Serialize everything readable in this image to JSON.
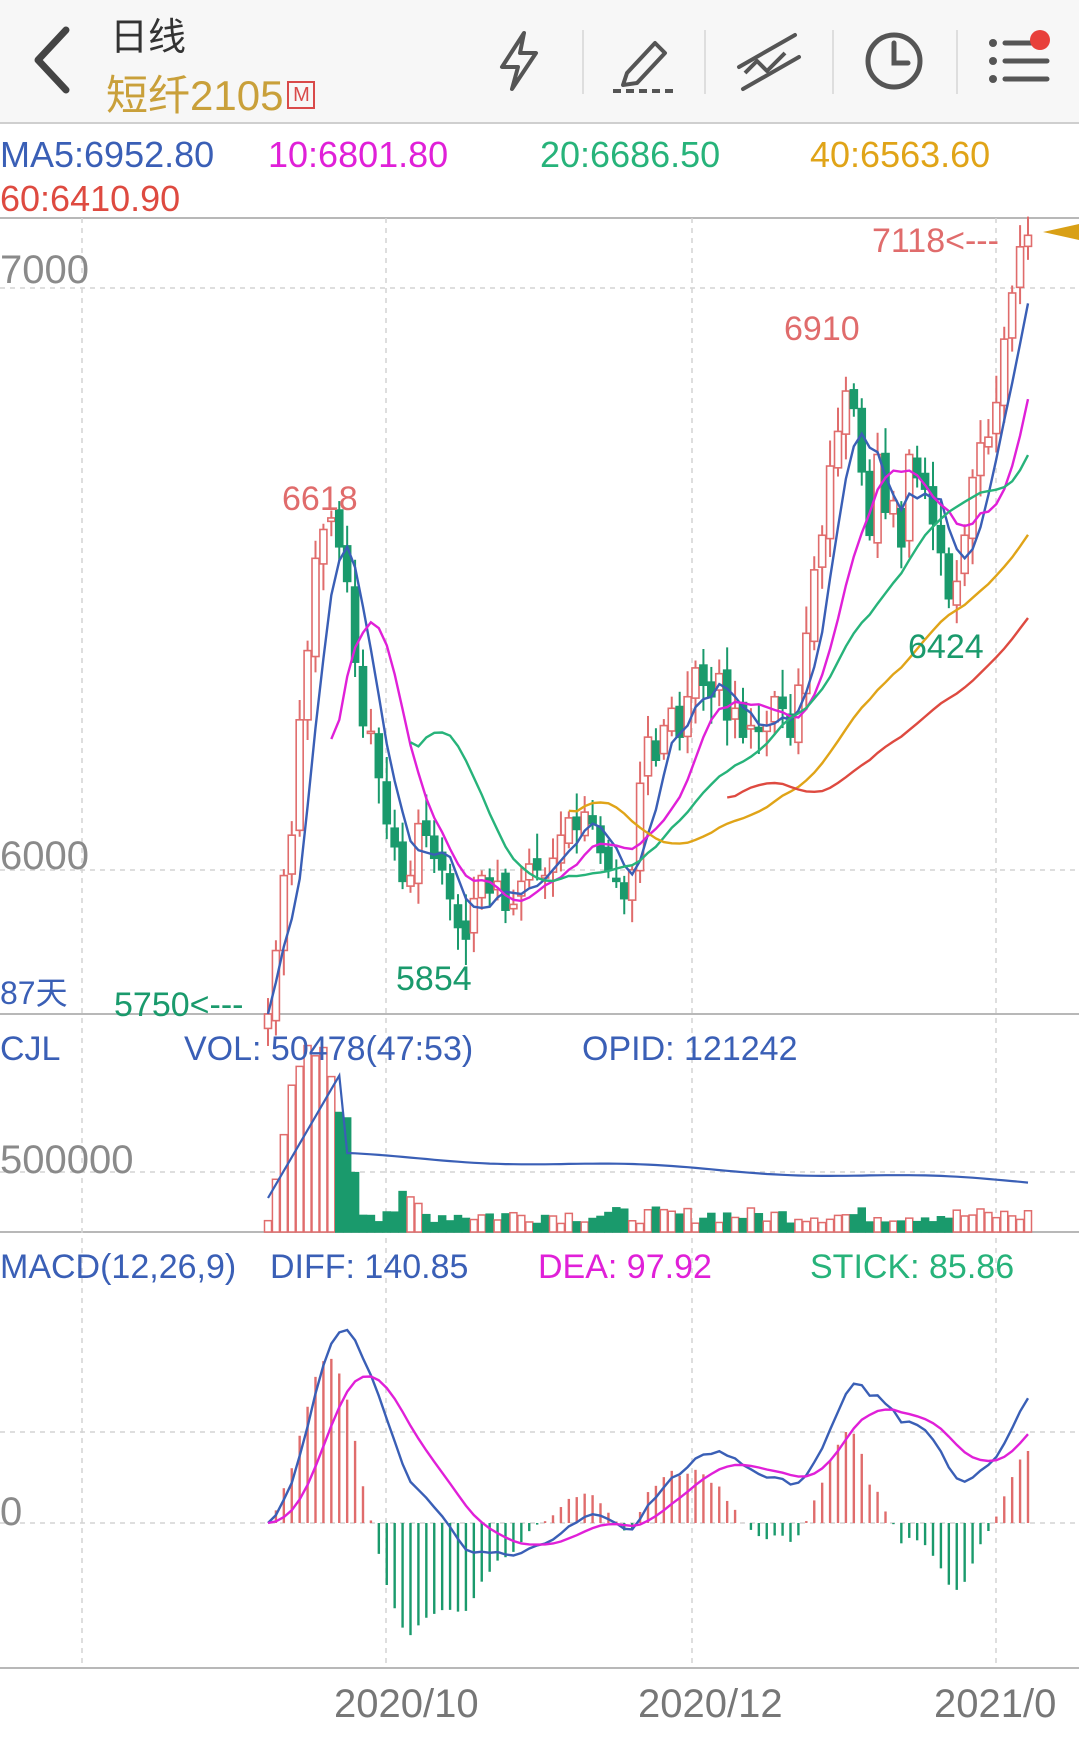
{
  "header": {
    "period": "日线",
    "contract": "短纤2105",
    "badge": "M"
  },
  "toolbar": [
    {
      "name": "lightning-icon"
    },
    {
      "name": "draw-icon"
    },
    {
      "name": "trend-icon"
    },
    {
      "name": "clock-icon"
    },
    {
      "name": "menu-icon"
    }
  ],
  "ma": {
    "ma5": "MA5:6952.80",
    "ma10": "10:6801.80",
    "ma20": "20:6686.50",
    "ma40": "40:6563.60",
    "ma60": "60:6410.90"
  },
  "colors": {
    "up": "#e06c6c",
    "down": "#1a9a6c",
    "ma5": "#3a5fb6",
    "ma10": "#e020d8",
    "ma20": "#27b37a",
    "ma40": "#e0a418",
    "ma60": "#de4a40"
  },
  "price_panel": {
    "y_ticks": [
      "7000",
      "6000"
    ],
    "days_label": "87天",
    "annotations": {
      "high": "7118<---",
      "low": "5750<---",
      "peak1": "6618",
      "peak2": "6910",
      "trough1": "5854",
      "trough2": "6424"
    }
  },
  "volume_panel": {
    "label": "CJL",
    "vol": "VOL: 50478(47:53)",
    "opid": "OPID: 121242",
    "y_tick": "500000"
  },
  "macd_panel": {
    "label": "MACD(12,26,9)",
    "diff": "DIFF: 140.85",
    "dea": "DEA: 97.92",
    "stick": "STICK: 85.86",
    "y_tick": "0"
  },
  "x_axis": [
    "2020/10",
    "2020/12",
    "2021/0"
  ],
  "chart_data": {
    "type": "candlestick",
    "ylim": [
      5750,
      7130
    ],
    "closes": [
      5750,
      5860,
      5990,
      6060,
      6260,
      6380,
      6540,
      6590,
      6610,
      6560,
      6500,
      6360,
      6250,
      6240,
      6160,
      6080,
      6040,
      5980,
      5990,
      6080,
      6060,
      6020,
      6000,
      5950,
      5900,
      5880,
      5950,
      5990,
      5960,
      5980,
      5930,
      5940,
      5980,
      6010,
      6000,
      5990,
      6020,
      6060,
      6090,
      6070,
      6100,
      6080,
      6030,
      6000,
      5980,
      5950,
      6000,
      6150,
      6230,
      6190,
      6250,
      6280,
      6230,
      6300,
      6350,
      6320,
      6300,
      6340,
      6260,
      6280,
      6230,
      6250,
      6240,
      6250,
      6300,
      6280,
      6230,
      6320,
      6410,
      6520,
      6580,
      6700,
      6760,
      6830,
      6800,
      6690,
      6580,
      6720,
      6620,
      6640,
      6560,
      6720,
      6680,
      6660,
      6600,
      6550,
      6470,
      6500,
      6580,
      6680,
      6740,
      6750,
      6810,
      6920,
      7000,
      7080,
      7100
    ]
  }
}
